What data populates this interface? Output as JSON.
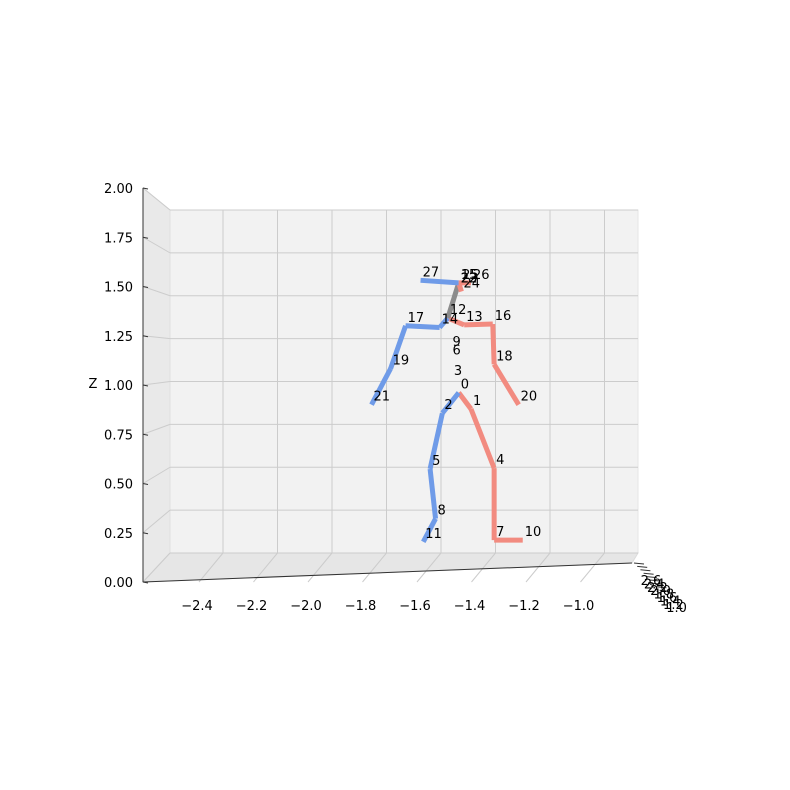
{
  "chart_data": {
    "type": "3d-skeleton",
    "title": "",
    "xlabel": "",
    "ylabel": "",
    "zlabel": "Z",
    "xlim": [
      -2.55,
      -1.0
    ],
    "zlim": [
      0.0,
      2.0
    ],
    "x_ticks": [
      "−2.4",
      "−2.2",
      "−2.0",
      "−1.8",
      "−1.6",
      "−1.4",
      "−1.2",
      "−1.0"
    ],
    "z_ticks": [
      "0.00",
      "0.25",
      "0.50",
      "0.75",
      "1.00",
      "1.25",
      "1.50",
      "1.75",
      "2.00"
    ],
    "y_ticks": [
      "2.6",
      "2.4",
      "2.2",
      "2.0",
      "1.8",
      "1.6",
      "1.4",
      "1.2",
      "1.0"
    ],
    "grid": true,
    "colors": {
      "left": "#6f9be8",
      "right": "#f28b80",
      "center": "#8c8c8c"
    },
    "joints": [
      {
        "id": "0",
        "x": -1.535,
        "z": 0.935
      },
      {
        "id": "1",
        "x": -1.49,
        "z": 0.84
      },
      {
        "id": "2",
        "x": -1.595,
        "z": 0.815
      },
      {
        "id": "3",
        "x": -1.56,
        "z": 1.015
      },
      {
        "id": "4",
        "x": -1.405,
        "z": 0.495
      },
      {
        "id": "5",
        "x": -1.64,
        "z": 0.49
      },
      {
        "id": "6",
        "x": -1.565,
        "z": 1.135
      },
      {
        "id": "7",
        "x": -1.405,
        "z": 0.075
      },
      {
        "id": "8",
        "x": -1.62,
        "z": 0.2
      },
      {
        "id": "9",
        "x": -1.565,
        "z": 1.185
      },
      {
        "id": "10",
        "x": -1.3,
        "z": 0.075
      },
      {
        "id": "11",
        "x": -1.665,
        "z": 0.065
      },
      {
        "id": "12",
        "x": -1.575,
        "z": 1.37
      },
      {
        "id": "13",
        "x": -1.515,
        "z": 1.33
      },
      {
        "id": "14",
        "x": -1.605,
        "z": 1.315
      },
      {
        "id": "15",
        "x": -1.535,
        "z": 1.575
      },
      {
        "id": "16",
        "x": -1.41,
        "z": 1.335
      },
      {
        "id": "17",
        "x": -1.73,
        "z": 1.325
      },
      {
        "id": "18",
        "x": -1.405,
        "z": 1.1
      },
      {
        "id": "19",
        "x": -1.785,
        "z": 1.075
      },
      {
        "id": "20",
        "x": -1.315,
        "z": 0.865
      },
      {
        "id": "21",
        "x": -1.855,
        "z": 0.865
      },
      {
        "id": "22",
        "x": -1.535,
        "z": 1.555
      },
      {
        "id": "23",
        "x": -1.535,
        "z": 1.555
      },
      {
        "id": "24",
        "x": -1.525,
        "z": 1.525
      },
      {
        "id": "25",
        "x": -1.53,
        "z": 1.575
      },
      {
        "id": "26",
        "x": -1.49,
        "z": 1.575
      },
      {
        "id": "27",
        "x": -1.675,
        "z": 1.59
      }
    ],
    "bones": [
      {
        "from": "0",
        "to": "1",
        "side": "right"
      },
      {
        "from": "1",
        "to": "4",
        "side": "right"
      },
      {
        "from": "4",
        "to": "7",
        "side": "right"
      },
      {
        "from": "7",
        "to": "10",
        "side": "right"
      },
      {
        "from": "0",
        "to": "2",
        "side": "left"
      },
      {
        "from": "2",
        "to": "5",
        "side": "left"
      },
      {
        "from": "5",
        "to": "8",
        "side": "left"
      },
      {
        "from": "8",
        "to": "11",
        "side": "left"
      },
      {
        "from": "12",
        "to": "13",
        "side": "right"
      },
      {
        "from": "13",
        "to": "16",
        "side": "right"
      },
      {
        "from": "16",
        "to": "18",
        "side": "right"
      },
      {
        "from": "18",
        "to": "20",
        "side": "right"
      },
      {
        "from": "12",
        "to": "14",
        "side": "left"
      },
      {
        "from": "14",
        "to": "17",
        "side": "left"
      },
      {
        "from": "17",
        "to": "19",
        "side": "left"
      },
      {
        "from": "19",
        "to": "21",
        "side": "left"
      },
      {
        "from": "12",
        "to": "15",
        "side": "center"
      },
      {
        "from": "15",
        "to": "24",
        "side": "right"
      },
      {
        "from": "15",
        "to": "27",
        "side": "left"
      },
      {
        "from": "15",
        "to": "26",
        "side": "right"
      }
    ]
  }
}
